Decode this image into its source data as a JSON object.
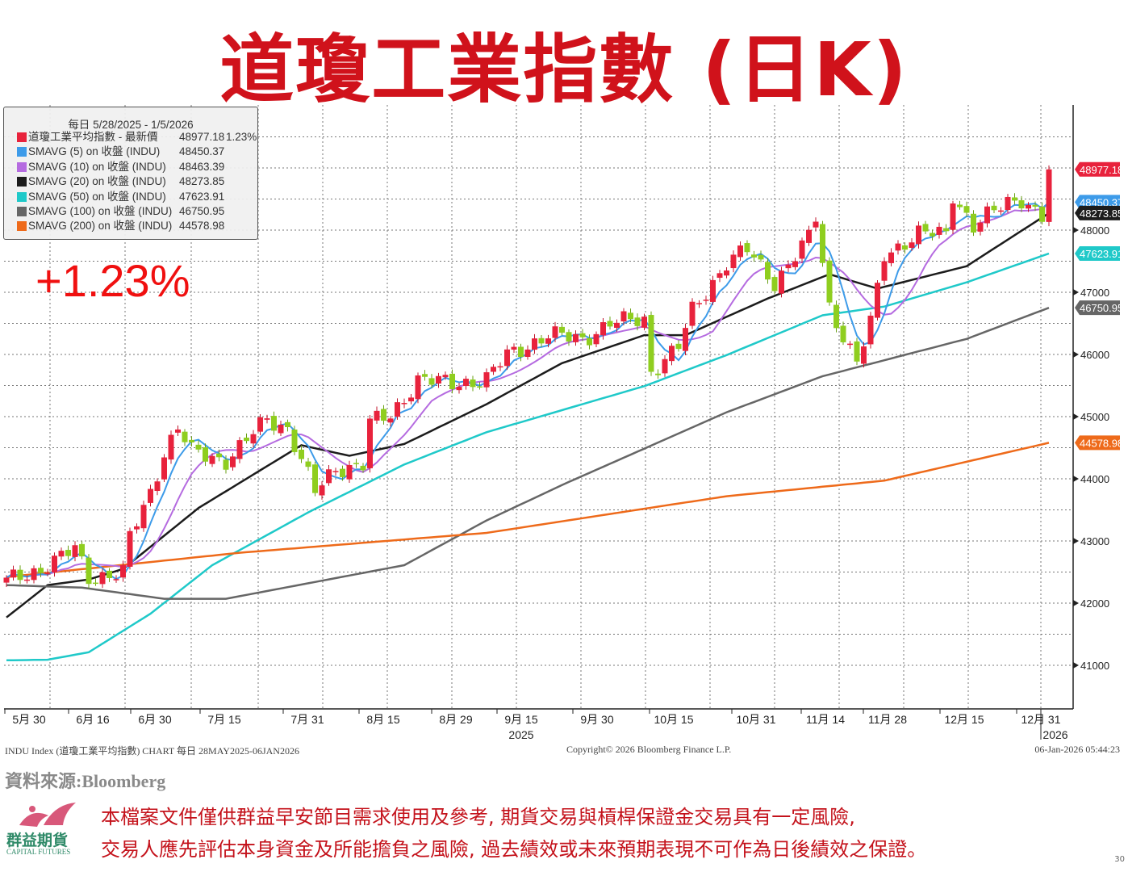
{
  "title": "道瓊工業指數 (日K)",
  "change_big": "+1.23%",
  "legend": {
    "header": "每日 5/28/2025 - 1/5/2026",
    "rows": [
      {
        "name": "道瓊工業平均指數 - 最新價",
        "value": "48977.18",
        "pct": "1.23%",
        "color": "#e8223c"
      },
      {
        "name": "SMAVG (5)  on 收盤 (INDU)",
        "value": "48450.37",
        "pct": "",
        "color": "#3d9be9"
      },
      {
        "name": "SMAVG (10)  on 收盤 (INDU)",
        "value": "48463.39",
        "pct": "",
        "color": "#b56be0"
      },
      {
        "name": "SMAVG (20)  on 收盤 (INDU)",
        "value": "48273.85",
        "pct": "",
        "color": "#1c1c1c"
      },
      {
        "name": "SMAVG (50)  on 收盤 (INDU)",
        "value": "47623.91",
        "pct": "",
        "color": "#1fc9c9"
      },
      {
        "name": "SMAVG (100)  on 收盤 (INDU)",
        "value": "46750.95",
        "pct": "",
        "color": "#666666"
      },
      {
        "name": "SMAVG (200)  on 收盤 (INDU)",
        "value": "44578.98",
        "pct": "",
        "color": "#ee6a1a"
      }
    ]
  },
  "chart_data": {
    "type": "candlestick",
    "title": "道瓊工業指數 (日K)",
    "ylim": [
      40500,
      49700
    ],
    "y_ticks": [
      "48000",
      "47000",
      "46000",
      "45000",
      "44000",
      "43000",
      "42000",
      "41000"
    ],
    "x_ticks": [
      "5月 30",
      "6月 16",
      "6月 30",
      "7月 15",
      "7月 31",
      "8月 15",
      "8月 29",
      "9月 15",
      "9月 30",
      "10月 15",
      "10月 31",
      "11月 14",
      "11月 28",
      "12月 15",
      "12月 31"
    ],
    "x_year_labels": [
      "2025",
      "2026"
    ],
    "trading_days": 153,
    "close_anchors": [
      [
        0,
        42350
      ],
      [
        5,
        42550
      ],
      [
        10,
        42870
      ],
      [
        12,
        42420
      ],
      [
        17,
        42480
      ],
      [
        18,
        43060
      ],
      [
        21,
        43780
      ],
      [
        23,
        44430
      ],
      [
        25,
        44820
      ],
      [
        27,
        44430
      ],
      [
        32,
        44300
      ],
      [
        34,
        44500
      ],
      [
        38,
        44960
      ],
      [
        41,
        44820
      ],
      [
        45,
        43780
      ],
      [
        48,
        44170
      ],
      [
        52,
        44230
      ],
      [
        53,
        44900
      ],
      [
        56,
        45010
      ],
      [
        60,
        45600
      ],
      [
        65,
        45530
      ],
      [
        70,
        45600
      ],
      [
        73,
        45990
      ],
      [
        79,
        46310
      ],
      [
        84,
        46250
      ],
      [
        88,
        46500
      ],
      [
        93,
        46570
      ],
      [
        94,
        45730
      ],
      [
        98,
        46120
      ],
      [
        100,
        46700
      ],
      [
        105,
        47480
      ],
      [
        108,
        47680
      ],
      [
        112,
        47160
      ],
      [
        117,
        47870
      ],
      [
        118,
        48200
      ],
      [
        120,
        46770
      ],
      [
        124,
        45860
      ],
      [
        126,
        46500
      ],
      [
        128,
        47610
      ],
      [
        133,
        47940
      ],
      [
        137,
        47940
      ],
      [
        138,
        48580
      ],
      [
        141,
        48060
      ],
      [
        146,
        48450
      ],
      [
        148,
        48520
      ],
      [
        151,
        48200
      ],
      [
        152,
        48977.18
      ]
    ],
    "series": [
      {
        "name": "SMAVG (20)",
        "color": "#1c1c1c",
        "anchors": [
          [
            0,
            41770
          ],
          [
            6,
            42290
          ],
          [
            12,
            42380
          ],
          [
            17,
            42550
          ],
          [
            28,
            43530
          ],
          [
            43,
            44540
          ],
          [
            50,
            44370
          ],
          [
            58,
            44560
          ],
          [
            70,
            45200
          ],
          [
            81,
            45860
          ],
          [
            93,
            46310
          ],
          [
            99,
            46310
          ],
          [
            111,
            46900
          ],
          [
            120,
            47290
          ],
          [
            127,
            47060
          ],
          [
            140,
            47420
          ],
          [
            152,
            48273.85
          ]
        ]
      },
      {
        "name": "SMAVG (50)",
        "color": "#1fc9c9",
        "anchors": [
          [
            0,
            41080
          ],
          [
            6,
            41090
          ],
          [
            12,
            41210
          ],
          [
            21,
            41830
          ],
          [
            30,
            42610
          ],
          [
            44,
            43460
          ],
          [
            58,
            44230
          ],
          [
            70,
            44750
          ],
          [
            93,
            45490
          ],
          [
            105,
            45990
          ],
          [
            119,
            46630
          ],
          [
            128,
            46770
          ],
          [
            140,
            47160
          ],
          [
            152,
            47623.91
          ]
        ]
      },
      {
        "name": "SMAVG (100)",
        "color": "#666666",
        "anchors": [
          [
            0,
            42290
          ],
          [
            11,
            42250
          ],
          [
            23,
            42070
          ],
          [
            32,
            42070
          ],
          [
            58,
            42610
          ],
          [
            70,
            43330
          ],
          [
            81,
            43900
          ],
          [
            105,
            45070
          ],
          [
            119,
            45650
          ],
          [
            140,
            46250
          ],
          [
            152,
            46750.95
          ]
        ]
      },
      {
        "name": "SMAVG (200)",
        "color": "#ee6a1a",
        "anchors": [
          [
            0,
            42420
          ],
          [
            34,
            42810
          ],
          [
            70,
            43130
          ],
          [
            105,
            43720
          ],
          [
            128,
            43970
          ],
          [
            152,
            44578.98
          ]
        ]
      }
    ],
    "last_values": [
      {
        "label": "48977.18",
        "value": 48977.18,
        "color": "#e8223c"
      },
      {
        "label": "48450.37",
        "value": 48450.37,
        "color": "#3d9be9"
      },
      {
        "label": "48273.85",
        "value": 48273.85,
        "color": "#1c1c1c"
      },
      {
        "label": "47623.91",
        "value": 47623.91,
        "color": "#1fc9c9"
      },
      {
        "label": "46750.95",
        "value": 46750.95,
        "color": "#666666"
      },
      {
        "label": "44578.98",
        "value": 44578.98,
        "color": "#ee6a1a"
      }
    ]
  },
  "footer": {
    "left": "INDU Index (道瓊工業平均指數) CHART 每日 28MAY2025-06JAN2026",
    "center": "Copyright© 2026 Bloomberg Finance L.P.",
    "right": "06-Jan-2026 05:44:23"
  },
  "source": "資料來源:Bloomberg",
  "disclaimer": [
    "本檔案文件僅供群益早安節目需求使用及參考, 期貨交易與槓桿保證金交易具有一定風險,",
    "交易人應先評估本身資金及所能擔負之風險, 過去績效或未來預期表現不可作為日後績效之保證。"
  ],
  "logo": {
    "cn": "群益期貨",
    "en": "CAPITAL FUTURES"
  },
  "page_number": "30"
}
